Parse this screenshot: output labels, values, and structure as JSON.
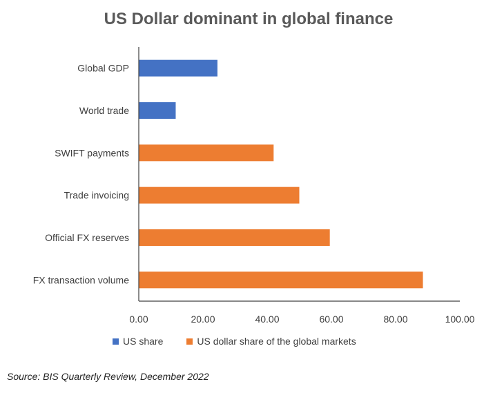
{
  "chart_data": {
    "type": "bar",
    "orientation": "horizontal",
    "title": "US Dollar dominant in global finance",
    "categories": [
      "Global GDP",
      "World trade",
      "SWIFT payments",
      "Trade invoicing",
      "Official FX reserves",
      "FX transaction volume"
    ],
    "series": [
      {
        "name": "US share",
        "color": "#4472C4",
        "values": [
          24.5,
          11.5,
          null,
          null,
          null,
          null
        ]
      },
      {
        "name": "US dollar share of the global markets",
        "color": "#ED7D31",
        "values": [
          null,
          null,
          42,
          50,
          59.5,
          88.5
        ]
      }
    ],
    "xlim": [
      0,
      100
    ],
    "xticks": [
      "0.00",
      "20.00",
      "40.00",
      "60.00",
      "80.00",
      "100.00"
    ],
    "grid": false,
    "legend_position": "bottom"
  },
  "source": "Source: BIS Quarterly Review, December 2022"
}
